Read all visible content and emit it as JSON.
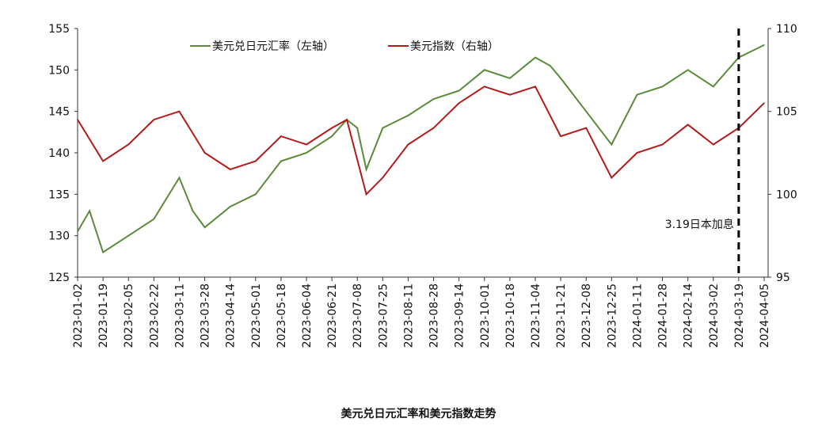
{
  "chart_data": {
    "type": "line",
    "title": "美元兑日元汇率和美元指数走势",
    "x_ticks": [
      "2023-01-02",
      "2023-01-19",
      "2023-02-05",
      "2023-02-22",
      "2023-03-11",
      "2023-03-28",
      "2023-04-14",
      "2023-05-01",
      "2023-05-18",
      "2023-06-04",
      "2023-06-21",
      "2023-07-08",
      "2023-07-25",
      "2023-08-11",
      "2023-08-28",
      "2023-09-14",
      "2023-10-01",
      "2023-10-18",
      "2023-11-04",
      "2023-11-21",
      "2023-12-08",
      "2023-12-25",
      "2024-01-11",
      "2024-01-28",
      "2024-02-14",
      "2024-03-02",
      "2024-03-19",
      "2024-04-05"
    ],
    "y_left": {
      "ticks": [
        125,
        130,
        135,
        140,
        145,
        150,
        155
      ],
      "range": [
        125,
        155
      ]
    },
    "y_right": {
      "ticks": [
        95,
        100,
        105,
        110
      ],
      "range": [
        95,
        110
      ]
    },
    "series": [
      {
        "name": "美元兑日元汇率（左轴）",
        "axis": "left",
        "color": "#5b8a3a",
        "x": [
          "2023-01-02",
          "2023-01-10",
          "2023-01-19",
          "2023-02-05",
          "2023-02-22",
          "2023-03-11",
          "2023-03-20",
          "2023-03-28",
          "2023-04-14",
          "2023-05-01",
          "2023-05-18",
          "2023-06-04",
          "2023-06-21",
          "2023-07-01",
          "2023-07-08",
          "2023-07-14",
          "2023-07-25",
          "2023-08-11",
          "2023-08-28",
          "2023-09-14",
          "2023-10-01",
          "2023-10-18",
          "2023-11-04",
          "2023-11-14",
          "2023-11-21",
          "2023-12-08",
          "2023-12-25",
          "2024-01-11",
          "2024-01-28",
          "2024-02-14",
          "2024-03-02",
          "2024-03-19",
          "2024-04-05"
        ],
        "values": [
          130.5,
          133,
          128,
          130,
          132,
          137,
          133,
          131,
          133.5,
          135,
          139,
          140,
          142,
          144,
          143,
          138,
          143,
          144.5,
          146.5,
          147.5,
          150,
          149,
          151.5,
          150.5,
          149,
          145,
          141,
          147,
          148,
          150,
          148,
          151.5,
          153
        ]
      },
      {
        "name": "美元指数（右轴）",
        "axis": "right",
        "color": "#b31b1b",
        "x": [
          "2023-01-02",
          "2023-01-19",
          "2023-02-05",
          "2023-02-22",
          "2023-03-11",
          "2023-03-28",
          "2023-04-14",
          "2023-05-01",
          "2023-05-18",
          "2023-06-04",
          "2023-06-21",
          "2023-07-01",
          "2023-07-14",
          "2023-07-25",
          "2023-08-11",
          "2023-08-28",
          "2023-09-14",
          "2023-10-01",
          "2023-10-18",
          "2023-11-04",
          "2023-11-21",
          "2023-12-08",
          "2023-12-25",
          "2024-01-11",
          "2024-01-28",
          "2024-02-14",
          "2024-03-02",
          "2024-03-19",
          "2024-04-05"
        ],
        "values": [
          104.5,
          102,
          103,
          104.5,
          105,
          102.5,
          101.5,
          102,
          103.5,
          103,
          104,
          104.5,
          100,
          101,
          103,
          104,
          105.5,
          106.5,
          106,
          106.5,
          103.5,
          104,
          101,
          102.5,
          103,
          104.2,
          103,
          104,
          105.5
        ]
      }
    ],
    "annotation": {
      "x": "2024-03-19",
      "label": "3.19日本加息"
    }
  }
}
